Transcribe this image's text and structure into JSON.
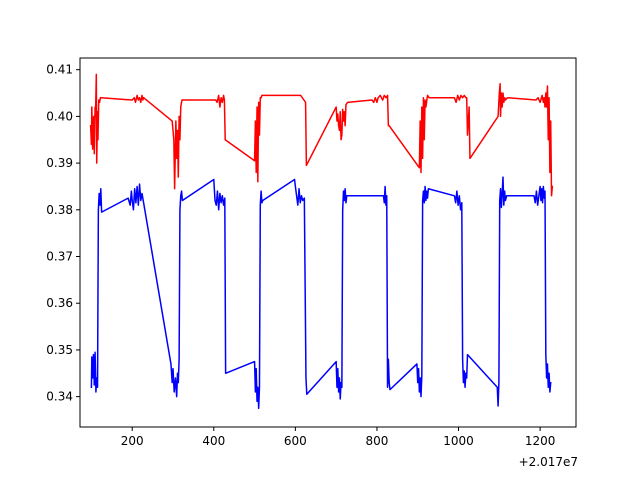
{
  "chart_data": {
    "type": "line",
    "title": "",
    "xlabel": "",
    "ylabel": "",
    "x_offset_label": "+2.017e7",
    "xlim": [
      72,
      1288
    ],
    "ylim": [
      0.3335,
      0.4125
    ],
    "xticks": [
      {
        "value": 200,
        "label": "200"
      },
      {
        "value": 400,
        "label": "400"
      },
      {
        "value": 600,
        "label": "600"
      },
      {
        "value": 800,
        "label": "800"
      },
      {
        "value": 1000,
        "label": "1000"
      },
      {
        "value": 1200,
        "label": "1200"
      }
    ],
    "yticks": [
      {
        "value": 0.34,
        "label": "0.34"
      },
      {
        "value": 0.35,
        "label": "0.35"
      },
      {
        "value": 0.36,
        "label": "0.36"
      },
      {
        "value": 0.37,
        "label": "0.37"
      },
      {
        "value": 0.38,
        "label": "0.38"
      },
      {
        "value": 0.39,
        "label": "0.39"
      },
      {
        "value": 0.4,
        "label": "0.40"
      },
      {
        "value": 0.41,
        "label": "0.41"
      }
    ],
    "grid": false,
    "legend": "none",
    "series": [
      {
        "color": "#ff0000",
        "points": [
          [
            98,
            0.398
          ],
          [
            100,
            0.394
          ],
          [
            101,
            0.402
          ],
          [
            103,
            0.393
          ],
          [
            104,
            0.3995
          ],
          [
            106,
            0.4
          ],
          [
            107,
            0.392
          ],
          [
            109,
            0.402
          ],
          [
            110,
            0.4
          ],
          [
            112,
            0.409
          ],
          [
            113,
            0.39
          ],
          [
            115,
            0.401
          ],
          [
            116,
            0.395
          ],
          [
            118,
            0.4035
          ],
          [
            120,
            0.403
          ],
          [
            122,
            0.404
          ],
          [
            124,
            0.404
          ],
          [
            200,
            0.4035
          ],
          [
            205,
            0.404
          ],
          [
            208,
            0.403
          ],
          [
            212,
            0.4045
          ],
          [
            215,
            0.4035
          ],
          [
            218,
            0.404
          ],
          [
            221,
            0.403
          ],
          [
            224,
            0.4045
          ],
          [
            226,
            0.4035
          ],
          [
            228,
            0.404
          ],
          [
            298,
            0.399
          ],
          [
            302,
            0.395
          ],
          [
            304,
            0.3845
          ],
          [
            307,
            0.399
          ],
          [
            309,
            0.391
          ],
          [
            311,
            0.397
          ],
          [
            313,
            0.387
          ],
          [
            315,
            0.4
          ],
          [
            317,
            0.395
          ],
          [
            319,
            0.402
          ],
          [
            322,
            0.4035
          ],
          [
            405,
            0.4035
          ],
          [
            408,
            0.403
          ],
          [
            412,
            0.4045
          ],
          [
            415,
            0.402
          ],
          [
            418,
            0.404
          ],
          [
            421,
            0.403
          ],
          [
            424,
            0.4045
          ],
          [
            426,
            0.4035
          ],
          [
            428,
            0.395
          ],
          [
            500,
            0.3905
          ],
          [
            502,
            0.399
          ],
          [
            504,
            0.388
          ],
          [
            506,
            0.402
          ],
          [
            508,
            0.386
          ],
          [
            510,
            0.403
          ],
          [
            512,
            0.396
          ],
          [
            514,
            0.404
          ],
          [
            516,
            0.404
          ],
          [
            518,
            0.4045
          ],
          [
            600,
            0.4045
          ],
          [
            613,
            0.4045
          ],
          [
            625,
            0.403
          ],
          [
            627,
            0.3895
          ],
          [
            700,
            0.402
          ],
          [
            702,
            0.399
          ],
          [
            704,
            0.4005
          ],
          [
            706,
            0.398
          ],
          [
            708,
            0.397
          ],
          [
            710,
            0.401
          ],
          [
            712,
            0.395
          ],
          [
            714,
            0.396
          ],
          [
            716,
            0.4015
          ],
          [
            718,
            0.399
          ],
          [
            720,
            0.401
          ],
          [
            722,
            0.398
          ],
          [
            724,
            0.4025
          ],
          [
            728,
            0.403
          ],
          [
            788,
            0.4035
          ],
          [
            792,
            0.403
          ],
          [
            796,
            0.404
          ],
          [
            800,
            0.403
          ],
          [
            803,
            0.404
          ],
          [
            808,
            0.4045
          ],
          [
            814,
            0.4035
          ],
          [
            818,
            0.4045
          ],
          [
            822,
            0.404
          ],
          [
            826,
            0.4045
          ],
          [
            828,
            0.398
          ],
          [
            830,
            0.398
          ],
          [
            904,
            0.389
          ],
          [
            906,
            0.399
          ],
          [
            908,
            0.388
          ],
          [
            910,
            0.402
          ],
          [
            912,
            0.391
          ],
          [
            914,
            0.404
          ],
          [
            916,
            0.395
          ],
          [
            918,
            0.4035
          ],
          [
            920,
            0.402
          ],
          [
            924,
            0.4045
          ],
          [
            928,
            0.404
          ],
          [
            990,
            0.404
          ],
          [
            994,
            0.403
          ],
          [
            998,
            0.4045
          ],
          [
            1002,
            0.4035
          ],
          [
            1006,
            0.4045
          ],
          [
            1010,
            0.404
          ],
          [
            1014,
            0.4045
          ],
          [
            1018,
            0.404
          ],
          [
            1020,
            0.404
          ],
          [
            1022,
            0.396
          ],
          [
            1024,
            0.399
          ],
          [
            1026,
            0.402
          ],
          [
            1028,
            0.391
          ],
          [
            1097,
            0.4
          ],
          [
            1100,
            0.405
          ],
          [
            1102,
            0.407
          ],
          [
            1103,
            0.4
          ],
          [
            1105,
            0.405
          ],
          [
            1107,
            0.402
          ],
          [
            1109,
            0.405
          ],
          [
            1111,
            0.403
          ],
          [
            1113,
            0.404
          ],
          [
            1115,
            0.4035
          ],
          [
            1120,
            0.404
          ],
          [
            1190,
            0.4035
          ],
          [
            1195,
            0.404
          ],
          [
            1200,
            0.403
          ],
          [
            1205,
            0.4045
          ],
          [
            1208,
            0.403
          ],
          [
            1210,
            0.404
          ],
          [
            1212,
            0.402
          ],
          [
            1214,
            0.405
          ],
          [
            1216,
            0.402
          ],
          [
            1218,
            0.4065
          ],
          [
            1220,
            0.395
          ],
          [
            1222,
            0.404
          ],
          [
            1224,
            0.388
          ],
          [
            1226,
            0.399
          ],
          [
            1228,
            0.383
          ],
          [
            1230,
            0.385
          ]
        ]
      },
      {
        "color": "#0000ff",
        "points": [
          [
            100,
            0.342
          ],
          [
            101,
            0.3485
          ],
          [
            103,
            0.344
          ],
          [
            105,
            0.349
          ],
          [
            107,
            0.3425
          ],
          [
            109,
            0.3495
          ],
          [
            111,
            0.341
          ],
          [
            113,
            0.344
          ],
          [
            115,
            0.342
          ],
          [
            117,
            0.38
          ],
          [
            119,
            0.3835
          ],
          [
            121,
            0.381
          ],
          [
            123,
            0.3845
          ],
          [
            125,
            0.3795
          ],
          [
            190,
            0.3825
          ],
          [
            195,
            0.381
          ],
          [
            198,
            0.384
          ],
          [
            200,
            0.382
          ],
          [
            203,
            0.38
          ],
          [
            206,
            0.3845
          ],
          [
            209,
            0.3815
          ],
          [
            212,
            0.385
          ],
          [
            215,
            0.381
          ],
          [
            218,
            0.3855
          ],
          [
            221,
            0.382
          ],
          [
            224,
            0.3835
          ],
          [
            226,
            0.3825
          ],
          [
            295,
            0.347
          ],
          [
            298,
            0.343
          ],
          [
            300,
            0.346
          ],
          [
            303,
            0.341
          ],
          [
            306,
            0.344
          ],
          [
            309,
            0.34
          ],
          [
            311,
            0.345
          ],
          [
            313,
            0.343
          ],
          [
            315,
            0.348
          ],
          [
            317,
            0.38
          ],
          [
            319,
            0.383
          ],
          [
            321,
            0.384
          ],
          [
            323,
            0.382
          ],
          [
            400,
            0.3865
          ],
          [
            403,
            0.382
          ],
          [
            406,
            0.381
          ],
          [
            409,
            0.384
          ],
          [
            412,
            0.38
          ],
          [
            415,
            0.3835
          ],
          [
            418,
            0.3815
          ],
          [
            421,
            0.383
          ],
          [
            424,
            0.381
          ],
          [
            427,
            0.3825
          ],
          [
            429,
            0.345
          ],
          [
            500,
            0.3475
          ],
          [
            502,
            0.341
          ],
          [
            504,
            0.346
          ],
          [
            506,
            0.339
          ],
          [
            508,
            0.342
          ],
          [
            510,
            0.3375
          ],
          [
            512,
            0.342
          ],
          [
            514,
            0.381
          ],
          [
            516,
            0.384
          ],
          [
            518,
            0.3815
          ],
          [
            520,
            0.382
          ],
          [
            598,
            0.3865
          ],
          [
            600,
            0.385
          ],
          [
            603,
            0.383
          ],
          [
            606,
            0.381
          ],
          [
            609,
            0.3845
          ],
          [
            612,
            0.3815
          ],
          [
            615,
            0.383
          ],
          [
            618,
            0.382
          ],
          [
            622,
            0.3825
          ],
          [
            626,
            0.344
          ],
          [
            628,
            0.3405
          ],
          [
            700,
            0.3475
          ],
          [
            702,
            0.342
          ],
          [
            704,
            0.346
          ],
          [
            706,
            0.341
          ],
          [
            708,
            0.344
          ],
          [
            710,
            0.3395
          ],
          [
            712,
            0.343
          ],
          [
            714,
            0.342
          ],
          [
            716,
            0.38
          ],
          [
            718,
            0.384
          ],
          [
            720,
            0.382
          ],
          [
            722,
            0.3845
          ],
          [
            724,
            0.3815
          ],
          [
            726,
            0.383
          ],
          [
            816,
            0.383
          ],
          [
            818,
            0.3815
          ],
          [
            820,
            0.385
          ],
          [
            822,
            0.381
          ],
          [
            824,
            0.383
          ],
          [
            826,
            0.342
          ],
          [
            828,
            0.348
          ],
          [
            830,
            0.343
          ],
          [
            832,
            0.3415
          ],
          [
            898,
            0.347
          ],
          [
            900,
            0.343
          ],
          [
            902,
            0.346
          ],
          [
            904,
            0.341
          ],
          [
            906,
            0.344
          ],
          [
            908,
            0.34
          ],
          [
            910,
            0.3445
          ],
          [
            912,
            0.382
          ],
          [
            914,
            0.384
          ],
          [
            916,
            0.3815
          ],
          [
            918,
            0.385
          ],
          [
            920,
            0.382
          ],
          [
            922,
            0.384
          ],
          [
            924,
            0.3825
          ],
          [
            926,
            0.3845
          ],
          [
            990,
            0.383
          ],
          [
            993,
            0.3815
          ],
          [
            996,
            0.384
          ],
          [
            999,
            0.381
          ],
          [
            1002,
            0.383
          ],
          [
            1005,
            0.38
          ],
          [
            1008,
            0.3815
          ],
          [
            1010,
            0.348
          ],
          [
            1012,
            0.343
          ],
          [
            1014,
            0.3455
          ],
          [
            1016,
            0.342
          ],
          [
            1018,
            0.345
          ],
          [
            1020,
            0.344
          ],
          [
            1022,
            0.349
          ],
          [
            1095,
            0.342
          ],
          [
            1097,
            0.338
          ],
          [
            1099,
            0.343
          ],
          [
            1101,
            0.382
          ],
          [
            1103,
            0.3845
          ],
          [
            1105,
            0.3805
          ],
          [
            1107,
            0.3835
          ],
          [
            1109,
            0.387
          ],
          [
            1111,
            0.381
          ],
          [
            1113,
            0.384
          ],
          [
            1115,
            0.382
          ],
          [
            1118,
            0.383
          ],
          [
            1185,
            0.383
          ],
          [
            1188,
            0.3815
          ],
          [
            1191,
            0.384
          ],
          [
            1194,
            0.381
          ],
          [
            1197,
            0.383
          ],
          [
            1200,
            0.385
          ],
          [
            1202,
            0.382
          ],
          [
            1204,
            0.3845
          ],
          [
            1206,
            0.3815
          ],
          [
            1208,
            0.385
          ],
          [
            1210,
            0.3825
          ],
          [
            1212,
            0.384
          ],
          [
            1214,
            0.349
          ],
          [
            1216,
            0.344
          ],
          [
            1218,
            0.347
          ],
          [
            1220,
            0.342
          ],
          [
            1222,
            0.345
          ],
          [
            1224,
            0.341
          ],
          [
            1226,
            0.343
          ]
        ]
      }
    ]
  }
}
